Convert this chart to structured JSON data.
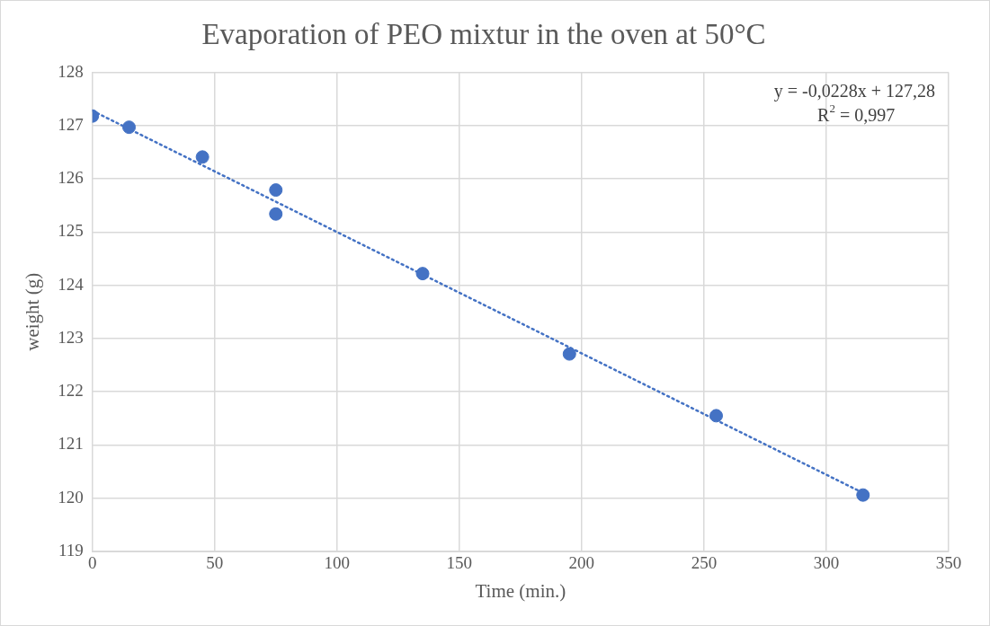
{
  "chart_data": {
    "type": "scatter",
    "title": "Evaporation of PEO mixtur in the oven at 50°C",
    "xlabel": "Time (min.)",
    "ylabel": "weight (g)",
    "x": [
      0,
      15,
      45,
      75,
      75,
      135,
      195,
      255,
      315
    ],
    "series": [
      {
        "type": "scatter",
        "color": "#4472c4",
        "marker": "circle",
        "values": [
          127.18,
          126.97,
          126.41,
          125.79,
          125.34,
          124.22,
          122.71,
          121.55,
          120.06
        ]
      },
      {
        "type": "line",
        "color": "#4472c4",
        "marker": "none",
        "line_style": "dotted",
        "x": [
          0,
          315
        ],
        "values": [
          127.28,
          120.1
        ]
      }
    ],
    "xlim": [
      0,
      350
    ],
    "xticks": [
      0,
      50,
      100,
      150,
      200,
      250,
      300,
      350
    ],
    "ylim": [
      119,
      128
    ],
    "yticks": [
      119,
      120,
      121,
      122,
      123,
      124,
      125,
      126,
      127,
      128
    ],
    "grid": true,
    "legend": false,
    "annotations": [
      "y = -0,0228x + 127,28",
      "R$^{2}$ = 0,997"
    ]
  }
}
